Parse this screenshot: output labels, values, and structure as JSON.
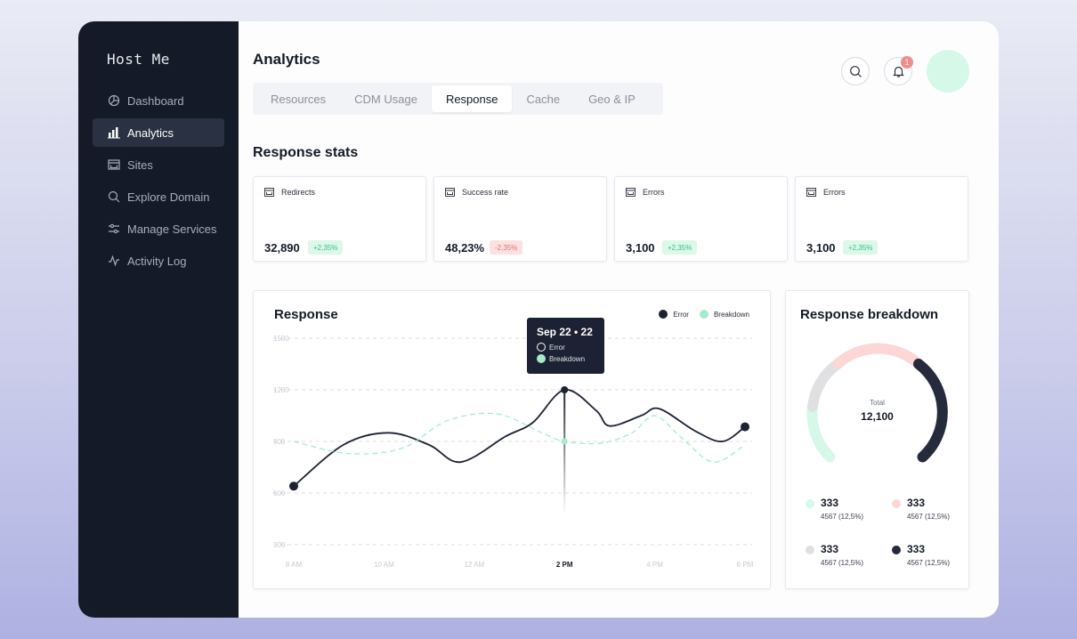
{
  "app": {
    "brand": "Host Me"
  },
  "sidebar": {
    "items": [
      {
        "label": "Dashboard",
        "icon": "pie-chart-icon",
        "active": false
      },
      {
        "label": "Analytics",
        "icon": "bar-chart-icon",
        "active": true
      },
      {
        "label": "Sites",
        "icon": "browser-window-icon",
        "active": false
      },
      {
        "label": "Explore Domain",
        "icon": "search-icon",
        "active": false
      },
      {
        "label": "Manage Services",
        "icon": "sliders-icon",
        "active": false
      },
      {
        "label": "Activity Log",
        "icon": "activity-icon",
        "active": false
      }
    ]
  },
  "header": {
    "title": "Analytics",
    "tabs": [
      {
        "label": "Resources",
        "active": false
      },
      {
        "label": "CDM Usage",
        "active": false
      },
      {
        "label": "Response",
        "active": true
      },
      {
        "label": "Cache",
        "active": false
      },
      {
        "label": "Geo & IP",
        "active": false
      }
    ],
    "notification_count": "1"
  },
  "stats": {
    "title": "Response stats",
    "cards": [
      {
        "label": "Redirects",
        "value": "32,890",
        "change": "+2,35%",
        "trend": "up"
      },
      {
        "label": "Success rate",
        "value": "48,23%",
        "change": "-2,35%",
        "trend": "down"
      },
      {
        "label": "Errors",
        "value": "3,100",
        "change": "+2,35%",
        "trend": "up"
      },
      {
        "label": "Errors",
        "value": "3,100",
        "change": "+2,35%",
        "trend": "up"
      }
    ]
  },
  "response_chart": {
    "title": "Response",
    "legend": [
      {
        "name": "Error",
        "color": "#1c2234"
      },
      {
        "name": "Breakdown",
        "color": "#a4ecca"
      }
    ],
    "tooltip": {
      "title": "Sep 22 • 22",
      "rows": [
        "Error",
        "Breakdown"
      ]
    }
  },
  "chart_data": {
    "type": "line",
    "x": [
      "8 AM",
      "10 AM",
      "12 AM",
      "2 PM",
      "4 PM",
      "6 PM"
    ],
    "highlight_x": "2 PM",
    "y_ticks": [
      1500,
      1200,
      900,
      600,
      300
    ],
    "ylim": [
      300,
      1500
    ],
    "grid": true,
    "series": [
      {
        "name": "Error",
        "color": "#1c2234",
        "style": "solid",
        "points": [
          [
            0,
            640
          ],
          [
            0.55,
            880
          ],
          [
            1.05,
            950
          ],
          [
            1.5,
            880
          ],
          [
            1.85,
            780
          ],
          [
            2.35,
            930
          ],
          [
            2.65,
            1010
          ],
          [
            3.0,
            1200
          ],
          [
            3.35,
            1080
          ],
          [
            3.5,
            990
          ],
          [
            3.85,
            1050
          ],
          [
            4.05,
            1090
          ],
          [
            4.45,
            960
          ],
          [
            4.75,
            900
          ],
          [
            5.0,
            985
          ]
        ]
      },
      {
        "name": "Breakdown",
        "color": "#a4ecca",
        "style": "dashed",
        "points": [
          [
            0,
            900
          ],
          [
            0.6,
            830
          ],
          [
            1.2,
            860
          ],
          [
            1.7,
            1020
          ],
          [
            2.25,
            1060
          ],
          [
            2.75,
            950
          ],
          [
            3.0,
            900
          ],
          [
            3.4,
            890
          ],
          [
            3.75,
            950
          ],
          [
            4.0,
            1050
          ],
          [
            4.3,
            920
          ],
          [
            4.65,
            780
          ],
          [
            5.0,
            880
          ]
        ]
      }
    ]
  },
  "breakdown": {
    "title": "Response breakdown",
    "total_label": "Total",
    "total_value": "12,100",
    "items": [
      {
        "value": "333",
        "detail": "4567 (12,5%)",
        "color": "#d5f8e8"
      },
      {
        "value": "333",
        "detail": "4567 (12,5%)",
        "color": "#fdd6d6"
      },
      {
        "value": "333",
        "detail": "4567 (12,5%)",
        "color": "#e0e0e3"
      },
      {
        "value": "333",
        "detail": "4567 (12,5%)",
        "color": "#252b3d"
      }
    ]
  }
}
